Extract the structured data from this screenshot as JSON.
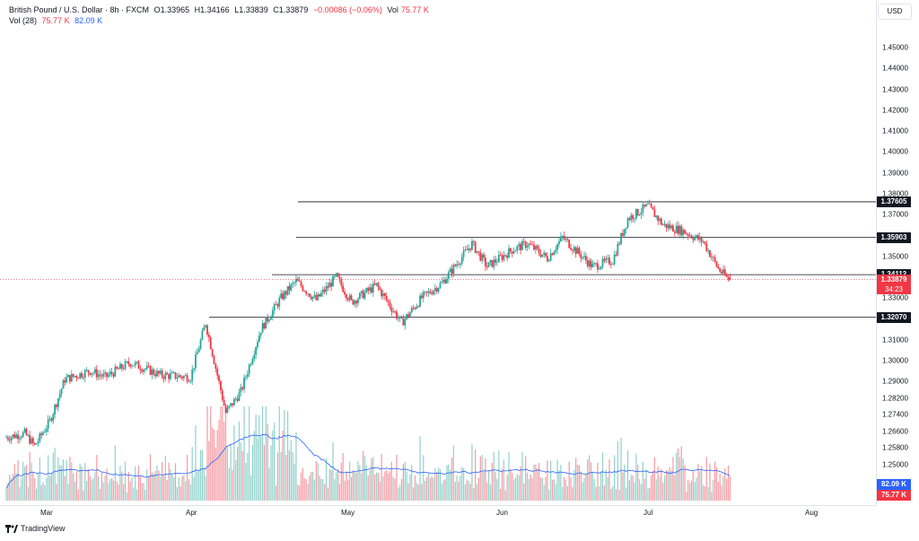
{
  "legend": {
    "title": "British Pound / U.S. Dollar · 8h · FXCM",
    "open": "O1.33965",
    "high": "H1.34166",
    "low": "L1.33839",
    "close": "C1.33879",
    "change": "−0.00086 (−0.06%)",
    "vol_label": "Vol",
    "vol_value": "75.77 K",
    "vol_ma_label": "Vol (28)",
    "vol_ma_a": "75.77 K",
    "vol_ma_b": "82.09 K"
  },
  "currency_button": "USD",
  "price_ticks": [
    "1.45000",
    "1.44000",
    "1.43000",
    "1.42000",
    "1.41000",
    "1.40000",
    "1.39000",
    "1.38000",
    "1.37000",
    "1.35000",
    "1.33000",
    "1.31000",
    "1.30000",
    "1.29000",
    "1.28200",
    "1.27400",
    "1.26600",
    "1.25800",
    "1.25000"
  ],
  "levels": [
    {
      "label": "1.37605",
      "value": 1.37605
    },
    {
      "label": "1.35903",
      "value": 1.35903
    },
    {
      "label": "1.34112",
      "value": 1.34112
    },
    {
      "label": "1.32070",
      "value": 1.3207
    }
  ],
  "current_price": {
    "label": "1.33879",
    "countdown": "34:23"
  },
  "volume_tags": {
    "ma": "82.09 K",
    "vol": "75.77 K"
  },
  "time_labels": [
    "Mar",
    "Apr",
    "May",
    "Jun",
    "Jul",
    "Aug"
  ],
  "footer_brand": "TradingView",
  "colors": {
    "up": "#26a69a",
    "down": "#f23645",
    "ma": "#2962ff",
    "level": "#131722"
  },
  "chart_data": {
    "type": "candlestick",
    "title": "British Pound / U.S. Dollar · 8h · FXCM",
    "ylim": [
      1.245,
      1.455
    ],
    "x_range": [
      "2025-02-22",
      "2025-08-10"
    ],
    "anchors": [
      {
        "date": "2025-02-22",
        "price": 1.263
      },
      {
        "date": "2025-02-26",
        "price": 1.265
      },
      {
        "date": "2025-02-28",
        "price": 1.259
      },
      {
        "date": "2025-03-03",
        "price": 1.271
      },
      {
        "date": "2025-03-06",
        "price": 1.291
      },
      {
        "date": "2025-03-11",
        "price": 1.295
      },
      {
        "date": "2025-03-14",
        "price": 1.292
      },
      {
        "date": "2025-03-19",
        "price": 1.299
      },
      {
        "date": "2025-03-25",
        "price": 1.293
      },
      {
        "date": "2025-03-31",
        "price": 1.292
      },
      {
        "date": "2025-04-03",
        "price": 1.318
      },
      {
        "date": "2025-04-07",
        "price": 1.275
      },
      {
        "date": "2025-04-10",
        "price": 1.285
      },
      {
        "date": "2025-04-14",
        "price": 1.315
      },
      {
        "date": "2025-04-18",
        "price": 1.33
      },
      {
        "date": "2025-04-21",
        "price": 1.338
      },
      {
        "date": "2025-04-25",
        "price": 1.329
      },
      {
        "date": "2025-04-29",
        "price": 1.34
      },
      {
        "date": "2025-05-02",
        "price": 1.328
      },
      {
        "date": "2025-05-07",
        "price": 1.336
      },
      {
        "date": "2025-05-12",
        "price": 1.318
      },
      {
        "date": "2025-05-16",
        "price": 1.33
      },
      {
        "date": "2025-05-20",
        "price": 1.337
      },
      {
        "date": "2025-05-26",
        "price": 1.356
      },
      {
        "date": "2025-05-29",
        "price": 1.345
      },
      {
        "date": "2025-06-03",
        "price": 1.353
      },
      {
        "date": "2025-06-06",
        "price": 1.356
      },
      {
        "date": "2025-06-10",
        "price": 1.349
      },
      {
        "date": "2025-06-13",
        "price": 1.359
      },
      {
        "date": "2025-06-19",
        "price": 1.345
      },
      {
        "date": "2025-06-23",
        "price": 1.348
      },
      {
        "date": "2025-06-26",
        "price": 1.368
      },
      {
        "date": "2025-06-30",
        "price": 1.374
      },
      {
        "date": "2025-07-03",
        "price": 1.365
      },
      {
        "date": "2025-07-07",
        "price": 1.362
      },
      {
        "date": "2025-07-11",
        "price": 1.357
      },
      {
        "date": "2025-07-14",
        "price": 1.344
      },
      {
        "date": "2025-07-16",
        "price": 1.3388
      }
    ],
    "volume": {
      "ma_period": 28,
      "last_volume": "75.77 K",
      "last_ma": "82.09 K"
    }
  }
}
